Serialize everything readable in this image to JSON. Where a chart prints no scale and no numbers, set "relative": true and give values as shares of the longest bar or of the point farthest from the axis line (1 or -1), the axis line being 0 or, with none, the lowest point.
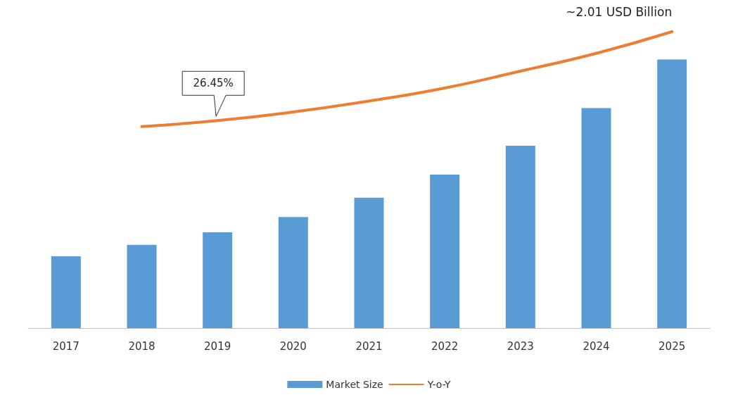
{
  "chart_data": {
    "type": "bar",
    "relative": true,
    "categories": [
      "2017",
      "2018",
      "2019",
      "2020",
      "2021",
      "2022",
      "2023",
      "2024",
      "2025"
    ],
    "series": [
      {
        "name": "Market Size",
        "color": "#5b9bd5",
        "values": [
          0.242,
          0.281,
          0.323,
          0.375,
          0.44,
          0.518,
          0.615,
          0.742,
          0.906
        ]
      },
      {
        "name": "Y-o-Y",
        "type": "line",
        "color": "#ed7d31",
        "values": [
          null,
          0.68,
          0.7,
          0.729,
          0.766,
          0.81,
          0.867,
          0.927,
          1
        ]
      }
    ],
    "annotations": [
      {
        "text": "26.45%",
        "x": "2019",
        "y": 0.7
      },
      {
        "text": "~2.01 USD Billion",
        "x": "2025",
        "y": 1
      }
    ],
    "legend": "bottom",
    "grid": false,
    "marker": "none",
    "line_style": "solid"
  }
}
